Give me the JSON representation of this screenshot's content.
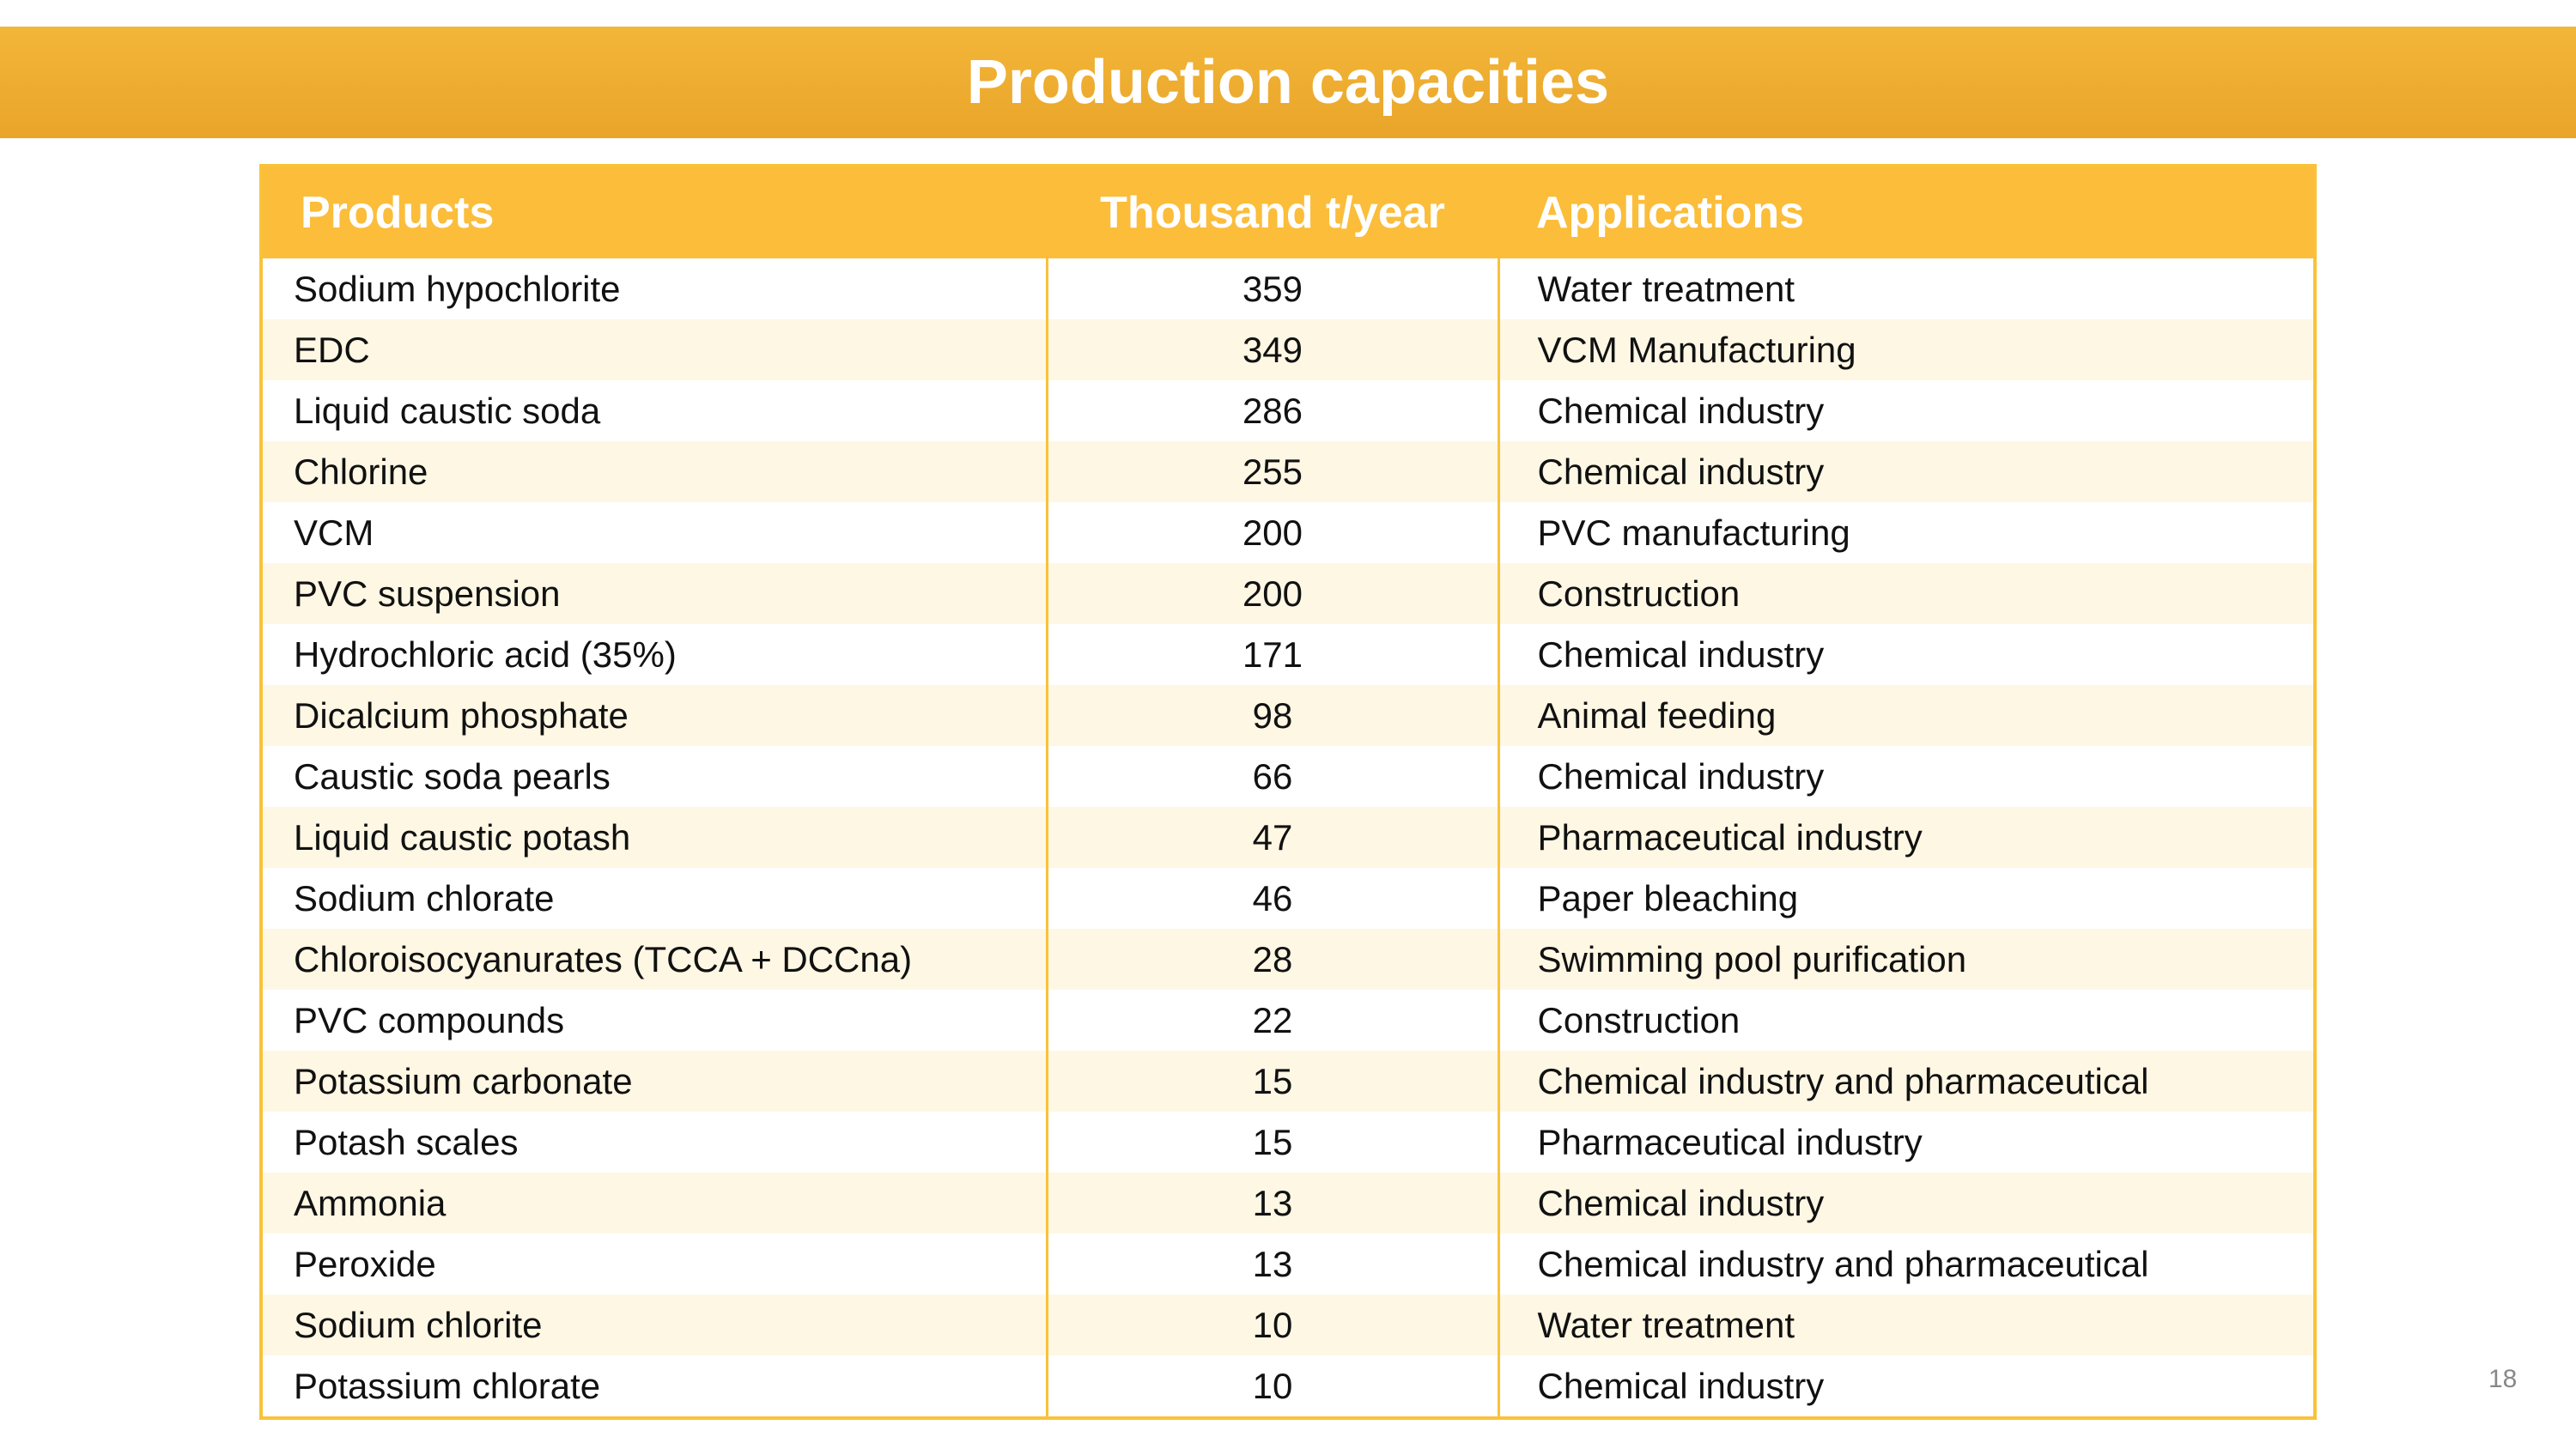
{
  "header": {
    "title": "Production capacities"
  },
  "table": {
    "columns": [
      "Products",
      "Thousand t/year",
      "Applications"
    ],
    "rows": [
      [
        "Sodium hypochlorite",
        "359",
        "Water treatment"
      ],
      [
        "EDC",
        "349",
        "VCM Manufacturing"
      ],
      [
        "Liquid caustic soda",
        "286",
        "Chemical industry"
      ],
      [
        "Chlorine",
        "255",
        "Chemical industry"
      ],
      [
        "VCM",
        "200",
        "PVC manufacturing"
      ],
      [
        "PVC suspension",
        "200",
        "Construction"
      ],
      [
        "Hydrochloric acid (35%)",
        "171",
        "Chemical industry"
      ],
      [
        "Dicalcium phosphate",
        "98",
        "Animal feeding"
      ],
      [
        "Caustic soda pearls",
        "66",
        "Chemical industry"
      ],
      [
        "Liquid caustic potash",
        "47",
        "Pharmaceutical industry"
      ],
      [
        "Sodium chlorate",
        "46",
        "Paper bleaching"
      ],
      [
        "Chloroisocyanurates (TCCA + DCCna)",
        "28",
        "Swimming pool purification"
      ],
      [
        "PVC compounds",
        "22",
        "Construction"
      ],
      [
        "Potassium carbonate",
        "15",
        "Chemical industry and pharmaceutical"
      ],
      [
        "Potash scales",
        "15",
        "Pharmaceutical industry"
      ],
      [
        "Ammonia",
        "13",
        "Chemical industry"
      ],
      [
        "Peroxide",
        "13",
        "Chemical industry and pharmaceutical"
      ],
      [
        "Sodium chlorite",
        "10",
        "Water treatment"
      ],
      [
        "Potassium chlorate",
        "10",
        "Chemical industry"
      ]
    ]
  },
  "footer": {
    "page_number": "18"
  }
}
